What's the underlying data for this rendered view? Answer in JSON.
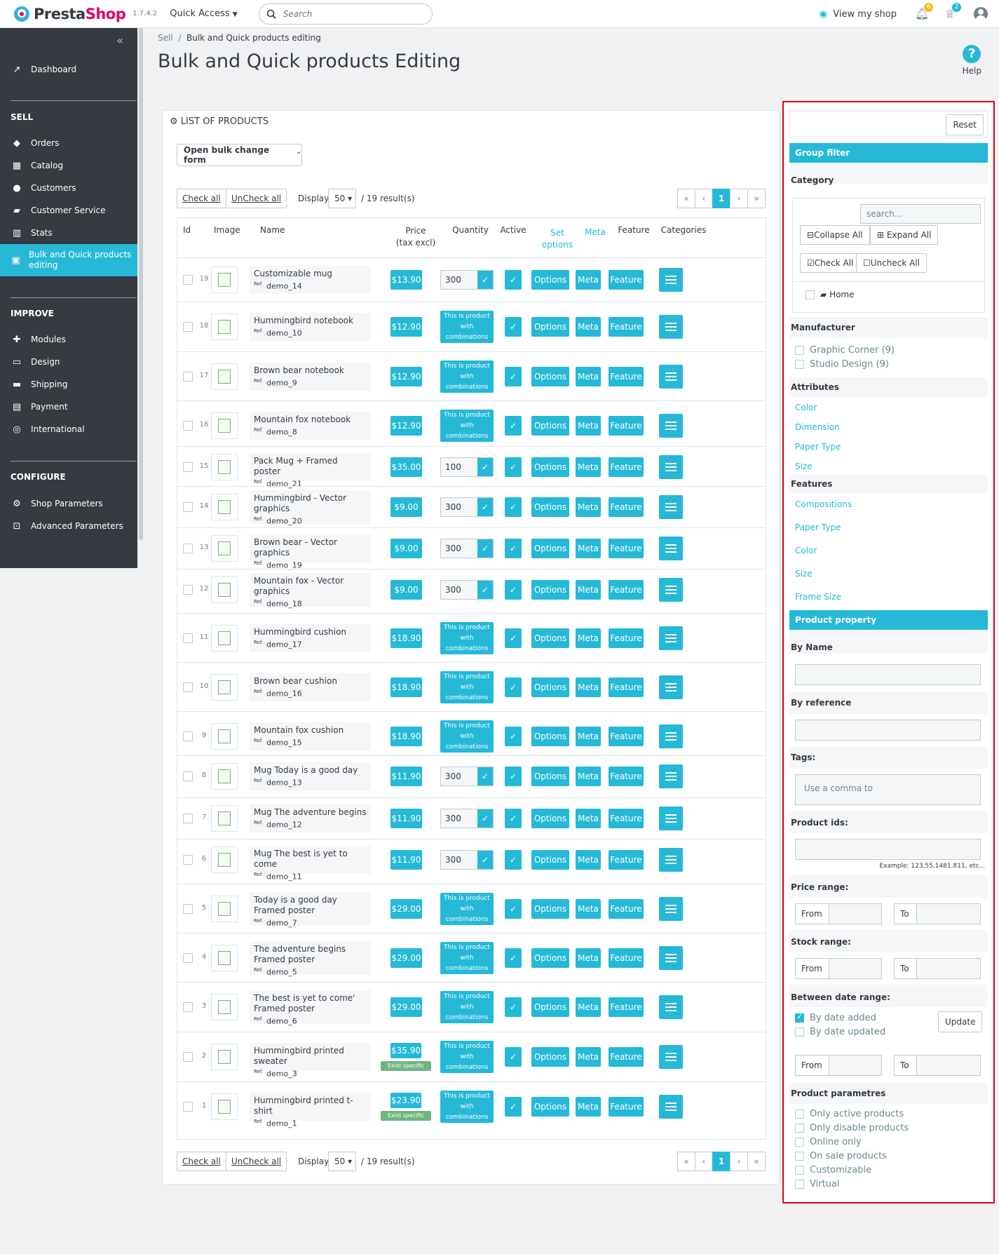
{
  "topbar": {
    "brand_a": "Presta",
    "brand_b": "Shop",
    "version": "1.7.4.2",
    "quick_access": "Quick Access",
    "search_placeholder": "Search",
    "view_shop": "View my shop",
    "notif_count": "6",
    "cart_count": "2"
  },
  "sidebar": {
    "dashboard": "Dashboard",
    "sell": "SELL",
    "orders": "Orders",
    "catalog": "Catalog",
    "customers": "Customers",
    "customer_service": "Customer Service",
    "stats": "Stats",
    "bulk": "Bulk and Quick products editing",
    "improve": "IMPROVE",
    "modules": "Modules",
    "design": "Design",
    "shipping": "Shipping",
    "payment": "Payment",
    "international": "International",
    "configure": "CONFIGURE",
    "shop_parameters": "Shop Parameters",
    "advanced_parameters": "Advanced Parameters"
  },
  "breadcrumb": {
    "sell": "Sell",
    "sep": "/",
    "current": "Bulk and Quick products editing"
  },
  "page_title": "Bulk and Quick products Editing",
  "help": "Help",
  "list": {
    "heading": "LIST OF PRODUCTS",
    "bulk_button": "Open bulk change form",
    "check_all": "Check all",
    "uncheck_all": "UnCheck all",
    "display": "Display",
    "per_page": "50",
    "results": "/ 19 result(s)",
    "page": "1",
    "columns": {
      "id": "Id",
      "image": "Image",
      "name": "Name",
      "price": "Price",
      "price_sub": "(tax excl)",
      "quantity": "Quantity",
      "active": "Active",
      "set_options": "Set options",
      "meta": "Meta",
      "feature": "Feature",
      "categories": "Categories"
    },
    "combo_text": "This is product with combinations",
    "options": "Options",
    "meta": "Meta",
    "feature": "Feature",
    "ref_label": "Ref.",
    "exist_price": "Exist specific price",
    "rows": [
      {
        "id": "19",
        "name": "Customizable mug",
        "ref": "demo_14",
        "price": "$13.90",
        "qty": "300"
      },
      {
        "id": "18",
        "name": "Hummingbird notebook",
        "ref": "demo_10",
        "price": "$12.90",
        "qty": ""
      },
      {
        "id": "17",
        "name": "Brown bear notebook",
        "ref": "demo_9",
        "price": "$12.90",
        "qty": ""
      },
      {
        "id": "16",
        "name": "Mountain fox notebook",
        "ref": "demo_8",
        "price": "$12.90",
        "qty": ""
      },
      {
        "id": "15",
        "name": "Pack Mug + Framed poster",
        "ref": "demo_21",
        "price": "$35.00",
        "qty": "100"
      },
      {
        "id": "14",
        "name": "Hummingbird - Vector graphics",
        "ref": "demo_20",
        "price": "$9.00",
        "qty": "300"
      },
      {
        "id": "13",
        "name": "Brown bear - Vector graphics",
        "ref": "demo_19",
        "price": "$9.00",
        "qty": "300"
      },
      {
        "id": "12",
        "name": "Mountain fox - Vector graphics",
        "ref": "demo_18",
        "price": "$9.00",
        "qty": "300"
      },
      {
        "id": "11",
        "name": "Hummingbird cushion",
        "ref": "demo_17",
        "price": "$18.90",
        "qty": ""
      },
      {
        "id": "10",
        "name": "Brown bear cushion",
        "ref": "demo_16",
        "price": "$18.90",
        "qty": ""
      },
      {
        "id": "9",
        "name": "Mountain fox cushion",
        "ref": "demo_15",
        "price": "$18.90",
        "qty": ""
      },
      {
        "id": "8",
        "name": "Mug Today is a good day",
        "ref": "demo_13",
        "price": "$11.90",
        "qty": "300"
      },
      {
        "id": "7",
        "name": "Mug The adventure begins",
        "ref": "demo_12",
        "price": "$11.90",
        "qty": "300"
      },
      {
        "id": "6",
        "name": "Mug The best is yet to come",
        "ref": "demo_11",
        "price": "$11.90",
        "qty": "300"
      },
      {
        "id": "5",
        "name": "Today is a good day Framed poster",
        "ref": "demo_7",
        "price": "$29.00",
        "qty": ""
      },
      {
        "id": "4",
        "name": "The adventure begins Framed poster",
        "ref": "demo_5",
        "price": "$29.00",
        "qty": ""
      },
      {
        "id": "3",
        "name": "The best is yet to come' Framed poster",
        "ref": "demo_6",
        "price": "$29.00",
        "qty": ""
      },
      {
        "id": "2",
        "name": "Hummingbird printed sweater",
        "ref": "demo_3",
        "price": "$35.90",
        "qty": ""
      },
      {
        "id": "1",
        "name": "Hummingbird printed t-shirt",
        "ref": "demo_1",
        "price": "$23.90",
        "qty": ""
      }
    ]
  },
  "filter": {
    "reset": "Reset",
    "group_filter": "Group filter",
    "category": "Category",
    "cat_search": "search...",
    "collapse_all": "Collapse All",
    "expand_all": "Expand All",
    "check_all": "Check All",
    "uncheck_all": "Uncheck All",
    "home": "Home",
    "manufacturer": "Manufacturer",
    "manufacturers": [
      "Graphic Corner (9)",
      "Studio Design (9)"
    ],
    "attributes": "Attributes",
    "attribute_items": [
      "Color",
      "Dimension",
      "Paper Type",
      "Size"
    ],
    "features": "Features",
    "feature_items": [
      "Compositions",
      "Paper Type",
      "Color",
      "Size",
      "Frame Size"
    ],
    "product_property": "Product property",
    "by_name": "By Name",
    "by_reference": "By reference",
    "tags": "Tags:",
    "tags_placeholder": "Use a comma to",
    "product_ids": "Product ids:",
    "ids_example": "Example: 123,55,1481,811, etc...",
    "price_range": "Price range:",
    "stock_range": "Stock range:",
    "from": "From",
    "to": "To",
    "date_range": "Between date range:",
    "by_date_added": "By date added",
    "by_date_updated": "By date updated",
    "update": "Update",
    "product_params": "Product parametres",
    "params": [
      "Only active products",
      "Only disable products",
      "Online only",
      "On sale products",
      "Customizable",
      "Virtual"
    ]
  },
  "colors": {
    "accent": "#25b9d7",
    "sidebar": "#363a41",
    "highlight": "#e0001b",
    "green": "#70b580"
  }
}
